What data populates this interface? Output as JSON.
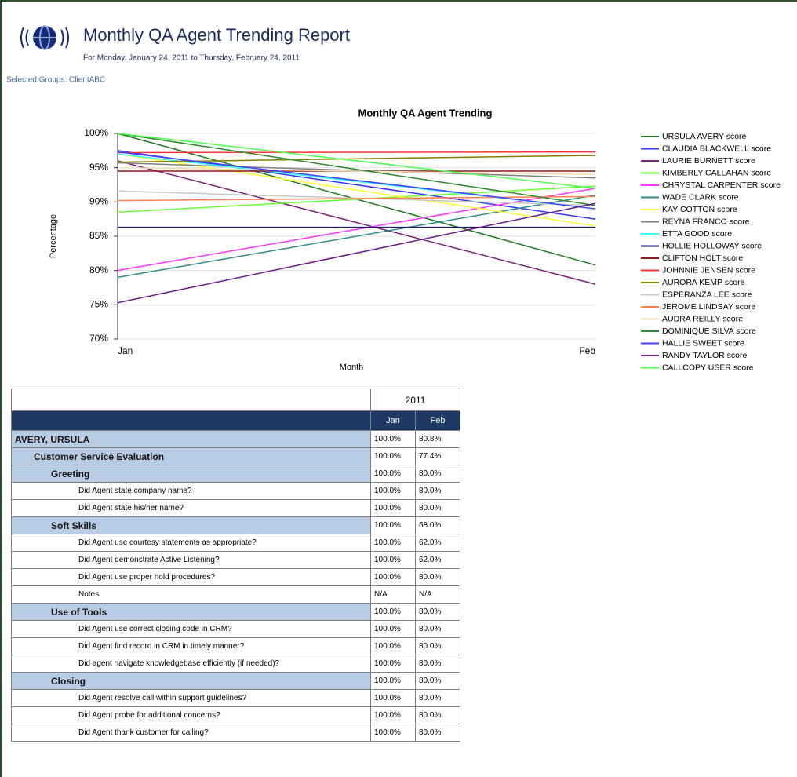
{
  "header": {
    "title": "Monthly QA Agent Trending Report",
    "subtitle": "For Monday, January 24, 2011 to Thursday, February 24, 2011",
    "groups": "Selected Groups: ClientABC"
  },
  "chart_data": {
    "type": "line",
    "title": "Monthly QA Agent Trending",
    "x_label": "Month",
    "y_label": "Percentage",
    "categories": [
      "Jan",
      "Feb"
    ],
    "ylim": [
      70,
      100
    ],
    "yticks": [
      {
        "value": 70,
        "label": "70%"
      },
      {
        "value": 75,
        "label": "75%"
      },
      {
        "value": 80,
        "label": "80%"
      },
      {
        "value": 85,
        "label": "85%"
      },
      {
        "value": 90,
        "label": "90%"
      },
      {
        "value": 95,
        "label": "95%"
      },
      {
        "value": 100,
        "label": "100%"
      }
    ],
    "grid": true,
    "legend": "right",
    "series": [
      {
        "name": "URSULA AVERY score",
        "color": "#1f7a1f",
        "values": [
          100,
          80.8
        ]
      },
      {
        "name": "CLAUDIA BLACKWELL score",
        "color": "#3333ff",
        "values": [
          97.5,
          87.5
        ]
      },
      {
        "name": "LAURIE BURNETT score",
        "color": "#7b1f7b",
        "values": [
          96,
          78
        ]
      },
      {
        "name": "KIMBERLY CALLAHAN score",
        "color": "#66ff33",
        "values": [
          88.5,
          92.3
        ]
      },
      {
        "name": "CHRYSTAL CARPENTER score",
        "color": "#ff33ff",
        "values": [
          80,
          92
        ]
      },
      {
        "name": "WADE CLARK score",
        "color": "#2e8b8b",
        "values": [
          79,
          91
        ]
      },
      {
        "name": "KAY COTTON score",
        "color": "#ffff33",
        "values": [
          97,
          86.5
        ]
      },
      {
        "name": "REYNA FRANCO score",
        "color": "#808080",
        "values": [
          95.7,
          93.5
        ]
      },
      {
        "name": "ETTA GOOD score",
        "color": "#33ffff",
        "values": [
          97,
          89
        ]
      },
      {
        "name": "HOLLIE HOLLOWAY score",
        "color": "#1a1a66",
        "values": [
          86.3,
          86.3
        ]
      },
      {
        "name": "CLIFTON HOLT score",
        "color": "#8b1a1a",
        "values": [
          94.5,
          94.5
        ]
      },
      {
        "name": "JOHNNIE JENSEN score",
        "color": "#ff3333",
        "values": [
          97.2,
          97.3
        ]
      },
      {
        "name": "AURORA KEMP score",
        "color": "#808000",
        "values": [
          95.8,
          96.8
        ]
      },
      {
        "name": "ESPERANZA LEE score",
        "color": "#c8c8c8",
        "values": [
          91.6,
          89.5
        ]
      },
      {
        "name": "JEROME LINDSAY score",
        "color": "#ff7f50",
        "values": [
          90.2,
          90.8
        ]
      },
      {
        "name": "AUDRA REILLY score",
        "color": "#f5deb3",
        "values": [
          95,
          94
        ]
      },
      {
        "name": "DOMINIQUE SILVA score",
        "color": "#2e8b2e",
        "values": [
          100,
          89.5
        ]
      },
      {
        "name": "HALLIE SWEET score",
        "color": "#4040ff",
        "values": [
          97.3,
          89
        ]
      },
      {
        "name": "RANDY TAYLOR score",
        "color": "#6a1b8a",
        "values": [
          75.3,
          89.8
        ]
      },
      {
        "name": "CALLCOPY USER score",
        "color": "#4dff4d",
        "values": [
          100,
          92
        ]
      }
    ]
  },
  "table": {
    "year": "2011",
    "columns": [
      "Jan",
      "Feb"
    ],
    "agent": {
      "name": "AVERY, URSULA",
      "values": [
        "100.0%",
        "80.8%"
      ],
      "evaluations": [
        {
          "name": "Customer Service Evaluation",
          "values": [
            "100.0%",
            "77.4%"
          ],
          "sections": [
            {
              "name": "Greeting",
              "values": [
                "100.0%",
                "80.0%"
              ],
              "questions": [
                {
                  "name": "Did Agent state company name?",
                  "values": [
                    "100.0%",
                    "80.0%"
                  ]
                },
                {
                  "name": "Did Agent state his/her name?",
                  "values": [
                    "100.0%",
                    "80.0%"
                  ]
                }
              ]
            },
            {
              "name": "Soft Skills",
              "values": [
                "100.0%",
                "68.0%"
              ],
              "questions": [
                {
                  "name": "Did Agent use courtesy statements as appropriate?",
                  "values": [
                    "100.0%",
                    "62.0%"
                  ]
                },
                {
                  "name": "Did Agent demonstrate Active Listening?",
                  "values": [
                    "100.0%",
                    "62.0%"
                  ]
                },
                {
                  "name": "Did Agent use proper hold procedures?",
                  "values": [
                    "100.0%",
                    "80.0%"
                  ]
                },
                {
                  "name": "Notes",
                  "values": [
                    "N/A",
                    "N/A"
                  ]
                }
              ]
            },
            {
              "name": "Use of Tools",
              "values": [
                "100.0%",
                "80.0%"
              ],
              "questions": [
                {
                  "name": "Did Agent use correct closing code in CRM?",
                  "values": [
                    "100.0%",
                    "80.0%"
                  ]
                },
                {
                  "name": "Did Agent find record in CRM in timely manner?",
                  "values": [
                    "100.0%",
                    "80.0%"
                  ]
                },
                {
                  "name": "Did agent navigate knowledgebase efficiently (if needed)?",
                  "values": [
                    "100.0%",
                    "80.0%"
                  ]
                }
              ]
            },
            {
              "name": "Closing",
              "values": [
                "100.0%",
                "80.0%"
              ],
              "questions": [
                {
                  "name": "Did Agent resolve call within support guidelines?",
                  "values": [
                    "100.0%",
                    "80.0%"
                  ]
                },
                {
                  "name": "Did Agent probe for additional concerns?",
                  "values": [
                    "100.0%",
                    "80.0%"
                  ]
                },
                {
                  "name": "Did Agent thank customer for calling?",
                  "values": [
                    "100.0%",
                    "80.0%"
                  ]
                }
              ]
            }
          ]
        }
      ]
    }
  }
}
